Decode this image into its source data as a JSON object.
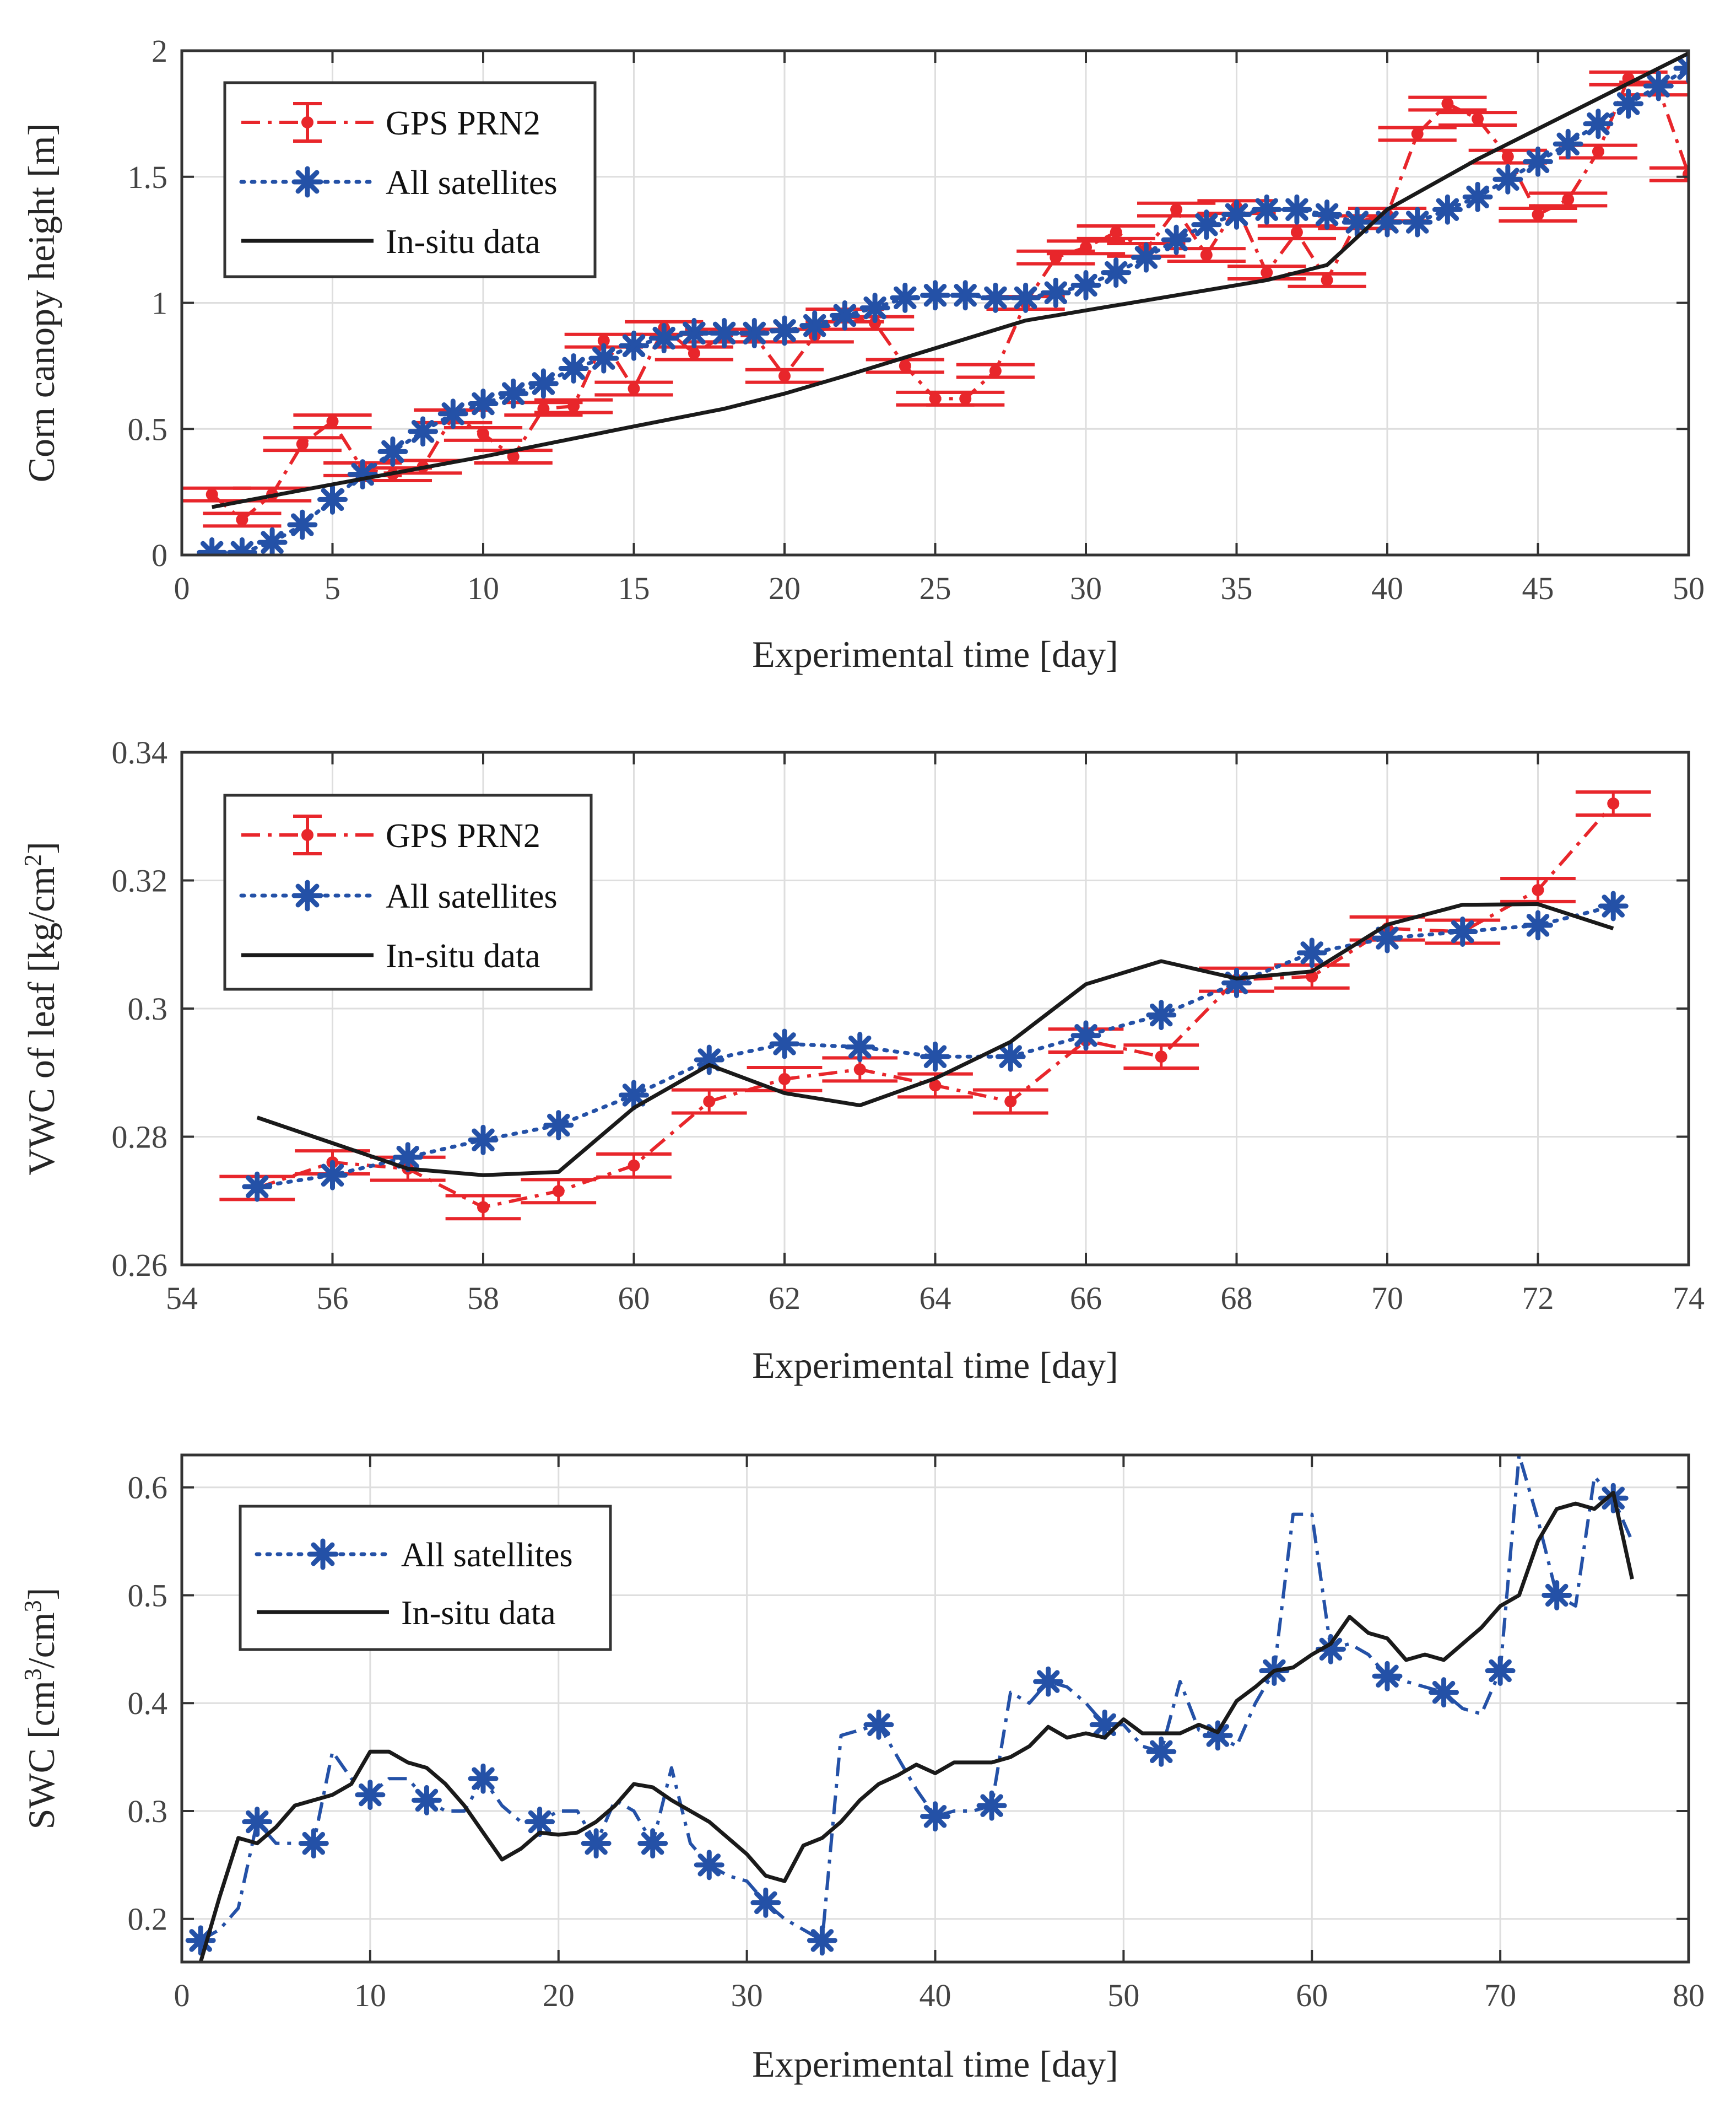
{
  "chart_data": [
    {
      "type": "line",
      "xlabel": "Experimental time [day]",
      "ylabel": "Corn canopy height [m]",
      "xlim": [
        0,
        50
      ],
      "ylim": [
        0,
        2
      ],
      "xticks": [
        0,
        5,
        10,
        15,
        20,
        25,
        30,
        35,
        40,
        45,
        50
      ],
      "yticks": [
        0,
        0.5,
        1,
        1.5,
        2
      ],
      "xtick_labels": [
        "0",
        "5",
        "10",
        "15",
        "20",
        "25",
        "30",
        "35",
        "40",
        "45",
        "50"
      ],
      "ytick_labels": [
        "0",
        "0.5",
        "1",
        "1.5",
        "2"
      ],
      "grid": true,
      "legend_position": "top-left",
      "series": [
        {
          "name": "GPS PRN2",
          "style": "dashdot-errorbar",
          "color": "#e8262b",
          "x": [
            1,
            2,
            3,
            4,
            5,
            6,
            7,
            8,
            9,
            10,
            11,
            12,
            13,
            14,
            15,
            16,
            17,
            18,
            19,
            20,
            21,
            22,
            23,
            24,
            25,
            26,
            27,
            28,
            29,
            30,
            31,
            32,
            33,
            34,
            35,
            36,
            37,
            38,
            39,
            40,
            41,
            42,
            43,
            44,
            45,
            46,
            47,
            48,
            49,
            50
          ],
          "y": [
            0.24,
            0.14,
            0.24,
            0.44,
            0.53,
            0.34,
            0.32,
            0.35,
            0.55,
            0.48,
            0.39,
            0.58,
            0.59,
            0.85,
            0.66,
            0.9,
            0.8,
            0.87,
            0.87,
            0.71,
            0.87,
            0.95,
            0.92,
            0.75,
            0.62,
            0.62,
            0.73,
            1.0,
            1.18,
            1.22,
            1.28,
            1.21,
            1.37,
            1.19,
            1.38,
            1.12,
            1.28,
            1.09,
            1.32,
            1.35,
            1.67,
            1.79,
            1.73,
            1.58,
            1.35,
            1.41,
            1.6,
            1.89,
            1.85,
            1.51
          ],
          "xerr": 1.3,
          "yerr": 0.025
        },
        {
          "name": "All satellites",
          "style": "dotted-star",
          "color": "#2451a7",
          "x": [
            1,
            2,
            3,
            4,
            5,
            6,
            7,
            8,
            9,
            10,
            11,
            12,
            13,
            14,
            15,
            16,
            17,
            18,
            19,
            20,
            21,
            22,
            23,
            24,
            25,
            26,
            27,
            28,
            29,
            30,
            31,
            32,
            33,
            34,
            35,
            36,
            37,
            38,
            39,
            40,
            41,
            42,
            43,
            44,
            45,
            46,
            47,
            48,
            49,
            50
          ],
          "y": [
            0.01,
            0.01,
            0.05,
            0.12,
            0.22,
            0.32,
            0.41,
            0.49,
            0.56,
            0.6,
            0.64,
            0.68,
            0.74,
            0.78,
            0.83,
            0.86,
            0.88,
            0.88,
            0.88,
            0.89,
            0.91,
            0.95,
            0.98,
            1.02,
            1.03,
            1.03,
            1.02,
            1.02,
            1.04,
            1.07,
            1.12,
            1.18,
            1.25,
            1.31,
            1.35,
            1.37,
            1.37,
            1.35,
            1.32,
            1.32,
            1.32,
            1.37,
            1.42,
            1.49,
            1.56,
            1.63,
            1.71,
            1.79,
            1.86,
            1.93
          ]
        },
        {
          "name": "In-situ data",
          "style": "solid",
          "color": "#1a1a1a",
          "x": [
            1,
            5,
            10,
            15,
            18,
            20,
            22,
            25,
            28,
            30,
            33,
            36,
            38,
            40,
            43,
            46,
            50
          ],
          "y": [
            0.19,
            0.28,
            0.39,
            0.51,
            0.58,
            0.64,
            0.71,
            0.82,
            0.93,
            0.97,
            1.03,
            1.09,
            1.15,
            1.37,
            1.57,
            1.75,
            1.99
          ]
        }
      ]
    },
    {
      "type": "line",
      "xlabel": "Experimental time [day]",
      "ylabel_main": "VWC of leaf [kg/cm",
      "ylabel_sup": "2",
      "ylabel_end": "]",
      "xlim": [
        54,
        74
      ],
      "ylim": [
        0.26,
        0.34
      ],
      "xticks": [
        54,
        56,
        58,
        60,
        62,
        64,
        66,
        68,
        70,
        72,
        74
      ],
      "yticks": [
        0.26,
        0.28,
        0.3,
        0.32,
        0.34
      ],
      "xtick_labels": [
        "54",
        "56",
        "58",
        "60",
        "62",
        "64",
        "66",
        "68",
        "70",
        "72",
        "74"
      ],
      "ytick_labels": [
        "0.26",
        "0.28",
        "0.3",
        "0.32",
        "0.34"
      ],
      "grid": true,
      "legend_position": "top-left",
      "series": [
        {
          "name": "GPS PRN2",
          "style": "dashdot-errorbar",
          "color": "#e8262b",
          "x": [
            55,
            56,
            57,
            58,
            59,
            60,
            61,
            62,
            63,
            64,
            65,
            66,
            67,
            68,
            69,
            70,
            71,
            72,
            73
          ],
          "y": [
            0.272,
            0.276,
            0.275,
            0.269,
            0.2715,
            0.2755,
            0.2855,
            0.289,
            0.2905,
            0.288,
            0.2855,
            0.295,
            0.2925,
            0.3045,
            0.305,
            0.3125,
            0.312,
            0.3185,
            0.332
          ],
          "xerr": 0.5,
          "yerr": 0.0018
        },
        {
          "name": "All satellites",
          "style": "dotted-star",
          "color": "#2451a7",
          "x": [
            55,
            56,
            57,
            58,
            59,
            60,
            61,
            62,
            63,
            64,
            65,
            66,
            67,
            68,
            69,
            70,
            71,
            72,
            73
          ],
          "y": [
            0.2722,
            0.274,
            0.2768,
            0.2795,
            0.2818,
            0.2865,
            0.292,
            0.2945,
            0.294,
            0.2925,
            0.2925,
            0.2958,
            0.299,
            0.304,
            0.3087,
            0.311,
            0.312,
            0.313,
            0.316
          ]
        },
        {
          "name": "In-situ data",
          "style": "solid",
          "color": "#1a1a1a",
          "x": [
            55,
            56,
            57,
            58,
            59,
            60,
            61,
            62,
            63,
            64,
            65,
            66,
            67,
            68,
            69,
            70,
            71,
            72,
            73
          ],
          "y": [
            0.283,
            0.279,
            0.275,
            0.274,
            0.2745,
            0.2845,
            0.2912,
            0.2868,
            0.2849,
            0.2891,
            0.2948,
            0.3038,
            0.3074,
            0.3047,
            0.3058,
            0.3131,
            0.3162,
            0.3163,
            0.3125
          ]
        }
      ]
    },
    {
      "type": "line",
      "xlabel": "Experimental time [day]",
      "ylabel_main": "SWC [cm",
      "ylabel_sup": "3",
      "ylabel_mid": "/cm",
      "ylabel_sup2": "3",
      "ylabel_end": "]",
      "xlim": [
        0,
        80
      ],
      "ylim": [
        0.16,
        0.63
      ],
      "xticks": [
        0,
        10,
        20,
        30,
        40,
        50,
        60,
        70,
        80
      ],
      "yticks": [
        0.2,
        0.3,
        0.4,
        0.5,
        0.6
      ],
      "xtick_labels": [
        "0",
        "10",
        "20",
        "30",
        "40",
        "50",
        "60",
        "70",
        "80"
      ],
      "ytick_labels": [
        "0.2",
        "0.3",
        "0.4",
        "0.5",
        "0.6"
      ],
      "grid": true,
      "legend_position": "top-left",
      "series": [
        {
          "name": "All satellites",
          "style": "dashdot-star",
          "color": "#2451a7",
          "x": [
            1,
            2,
            3,
            4,
            5,
            6,
            7,
            8,
            9,
            10,
            11,
            12,
            13,
            14,
            15,
            16,
            17,
            18,
            19,
            20,
            21,
            22,
            23,
            24,
            25,
            26,
            27,
            28,
            29,
            30,
            31,
            32,
            33,
            34,
            35,
            36,
            37,
            38,
            39,
            40,
            41,
            42,
            43,
            44,
            45,
            46,
            47,
            48,
            49,
            50,
            51,
            52,
            53,
            54,
            55,
            56,
            57,
            58,
            59,
            60,
            61,
            62,
            63,
            64,
            65,
            66,
            67,
            68,
            69,
            70,
            71,
            72,
            73,
            74,
            75,
            76,
            77
          ],
          "y": [
            0.18,
            0.19,
            0.21,
            0.29,
            0.27,
            0.27,
            0.27,
            0.355,
            0.33,
            0.315,
            0.33,
            0.33,
            0.31,
            0.3,
            0.3,
            0.33,
            0.305,
            0.29,
            0.29,
            0.3,
            0.3,
            0.27,
            0.31,
            0.3,
            0.27,
            0.34,
            0.27,
            0.25,
            0.24,
            0.235,
            0.215,
            0.2,
            0.19,
            0.18,
            0.37,
            0.375,
            0.38,
            0.35,
            0.32,
            0.295,
            0.3,
            0.3,
            0.305,
            0.41,
            0.4,
            0.42,
            0.415,
            0.4,
            0.38,
            0.38,
            0.36,
            0.355,
            0.42,
            0.375,
            0.37,
            0.36,
            0.4,
            0.43,
            0.575,
            0.575,
            0.45,
            0.455,
            0.445,
            0.425,
            0.42,
            0.415,
            0.41,
            0.395,
            0.39,
            0.43,
            0.63,
            0.57,
            0.5,
            0.49,
            0.61,
            0.59,
            0.55
          ]
        },
        {
          "name": "In-situ data",
          "style": "solid",
          "color": "#1a1a1a",
          "x": [
            1,
            2,
            3,
            4,
            5,
            6,
            7,
            8,
            9,
            10,
            11,
            12,
            13,
            14,
            15,
            16,
            17,
            18,
            19,
            20,
            21,
            22,
            23,
            24,
            25,
            26,
            27,
            28,
            29,
            30,
            31,
            32,
            33,
            34,
            35,
            36,
            37,
            38,
            39,
            40,
            41,
            42,
            43,
            44,
            45,
            46,
            47,
            48,
            49,
            50,
            51,
            52,
            53,
            54,
            55,
            56,
            57,
            58,
            59,
            60,
            61,
            62,
            63,
            64,
            65,
            66,
            67,
            68,
            69,
            70,
            71,
            72,
            73,
            74,
            75,
            76,
            77
          ],
          "y": [
            0.16,
            0.22,
            0.275,
            0.27,
            0.285,
            0.305,
            0.31,
            0.315,
            0.325,
            0.355,
            0.355,
            0.345,
            0.34,
            0.325,
            0.305,
            0.28,
            0.255,
            0.265,
            0.28,
            0.278,
            0.28,
            0.29,
            0.305,
            0.325,
            0.322,
            0.31,
            0.3,
            0.29,
            0.275,
            0.26,
            0.24,
            0.235,
            0.268,
            0.275,
            0.29,
            0.31,
            0.325,
            0.333,
            0.343,
            0.335,
            0.345,
            0.345,
            0.345,
            0.35,
            0.36,
            0.378,
            0.368,
            0.372,
            0.368,
            0.385,
            0.372,
            0.372,
            0.372,
            0.38,
            0.373,
            0.402,
            0.415,
            0.43,
            0.433,
            0.445,
            0.455,
            0.48,
            0.465,
            0.46,
            0.44,
            0.445,
            0.44,
            0.455,
            0.47,
            0.49,
            0.5,
            0.55,
            0.58,
            0.585,
            0.58,
            0.595,
            0.515
          ]
        }
      ]
    }
  ]
}
